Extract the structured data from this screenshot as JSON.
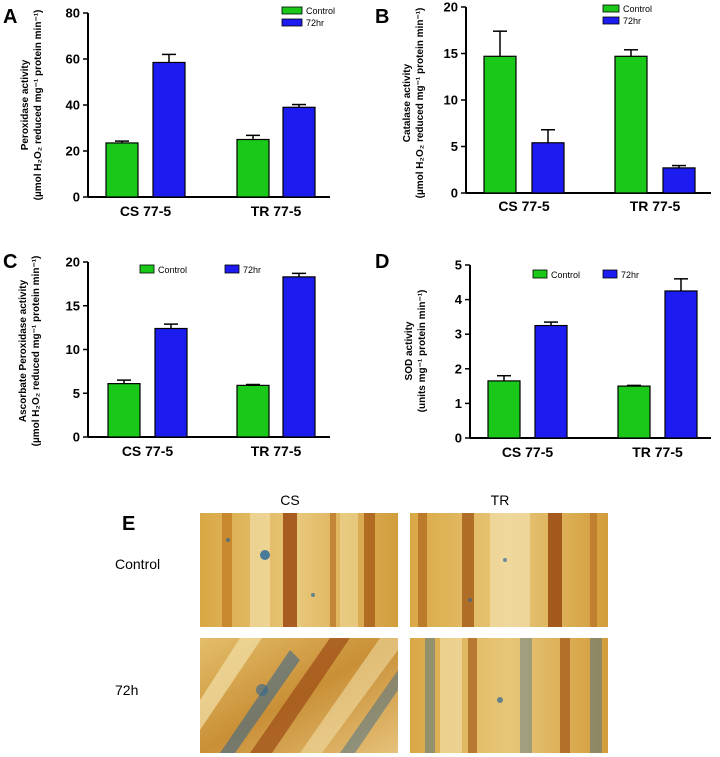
{
  "colors": {
    "control": "#19c819",
    "treated": "#1c1cf0",
    "axis": "#000000",
    "bar_edge": "#000000"
  },
  "chart_data": [
    {
      "id": "A",
      "type": "bar",
      "categories": [
        "CS 77-5",
        "TR 77-5"
      ],
      "series": [
        {
          "name": "Control",
          "values": [
            23.5,
            25.0
          ],
          "errors": [
            0.8,
            1.8
          ]
        },
        {
          "name": "72hr",
          "values": [
            58.5,
            39.0
          ],
          "errors": [
            3.5,
            1.2
          ]
        }
      ],
      "ylim": [
        0,
        80
      ],
      "yticks": [
        0,
        20,
        40,
        60,
        80
      ],
      "ylabel_line1": "Peroxidase activity",
      "ylabel_line2": "(µmol H₂O₂ reduced mg⁻¹ protein min⁻¹)"
    },
    {
      "id": "B",
      "type": "bar",
      "categories": [
        "CS 77-5",
        "TR 77-5"
      ],
      "series": [
        {
          "name": "Control",
          "values": [
            14.7,
            14.7
          ],
          "errors": [
            2.7,
            0.7
          ]
        },
        {
          "name": "72hr",
          "values": [
            5.4,
            2.7
          ],
          "errors": [
            1.4,
            0.25
          ]
        }
      ],
      "ylim": [
        0,
        20
      ],
      "yticks": [
        0,
        5,
        10,
        15,
        20
      ],
      "ylabel_line1": "Catalase activity",
      "ylabel_line2": "(µmol H₂O₂ reduced mg⁻¹ protein min⁻¹)"
    },
    {
      "id": "C",
      "type": "bar",
      "categories": [
        "CS 77-5",
        "TR 77-5"
      ],
      "series": [
        {
          "name": "Control",
          "values": [
            6.1,
            5.9
          ],
          "errors": [
            0.4,
            0.1
          ]
        },
        {
          "name": "72hr",
          "values": [
            12.4,
            18.3
          ],
          "errors": [
            0.5,
            0.4
          ]
        }
      ],
      "ylim": [
        0,
        20
      ],
      "yticks": [
        0,
        5,
        10,
        15,
        20
      ],
      "ylabel_line1": "Ascorbate Peroxidase activity",
      "ylabel_line2": "(µmol H₂O₂ reduced mg⁻¹ protein min⁻¹)"
    },
    {
      "id": "D",
      "type": "bar",
      "categories": [
        "CS 77-5",
        "TR 77-5"
      ],
      "series": [
        {
          "name": "Control",
          "values": [
            1.65,
            1.5
          ],
          "errors": [
            0.15,
            0.02
          ]
        },
        {
          "name": "72hr",
          "values": [
            3.25,
            4.25
          ],
          "errors": [
            0.1,
            0.35
          ]
        }
      ],
      "ylim": [
        0,
        5
      ],
      "yticks": [
        0,
        1,
        2,
        3,
        4,
        5
      ],
      "ylabel_line1": "SOD activity",
      "ylabel_line2": "(units mg⁻¹ protein min⁻¹)"
    }
  ],
  "panel_e": {
    "letter": "E",
    "col_labels": [
      "CS",
      "TR"
    ],
    "row_labels": [
      "Control",
      "72h"
    ]
  }
}
